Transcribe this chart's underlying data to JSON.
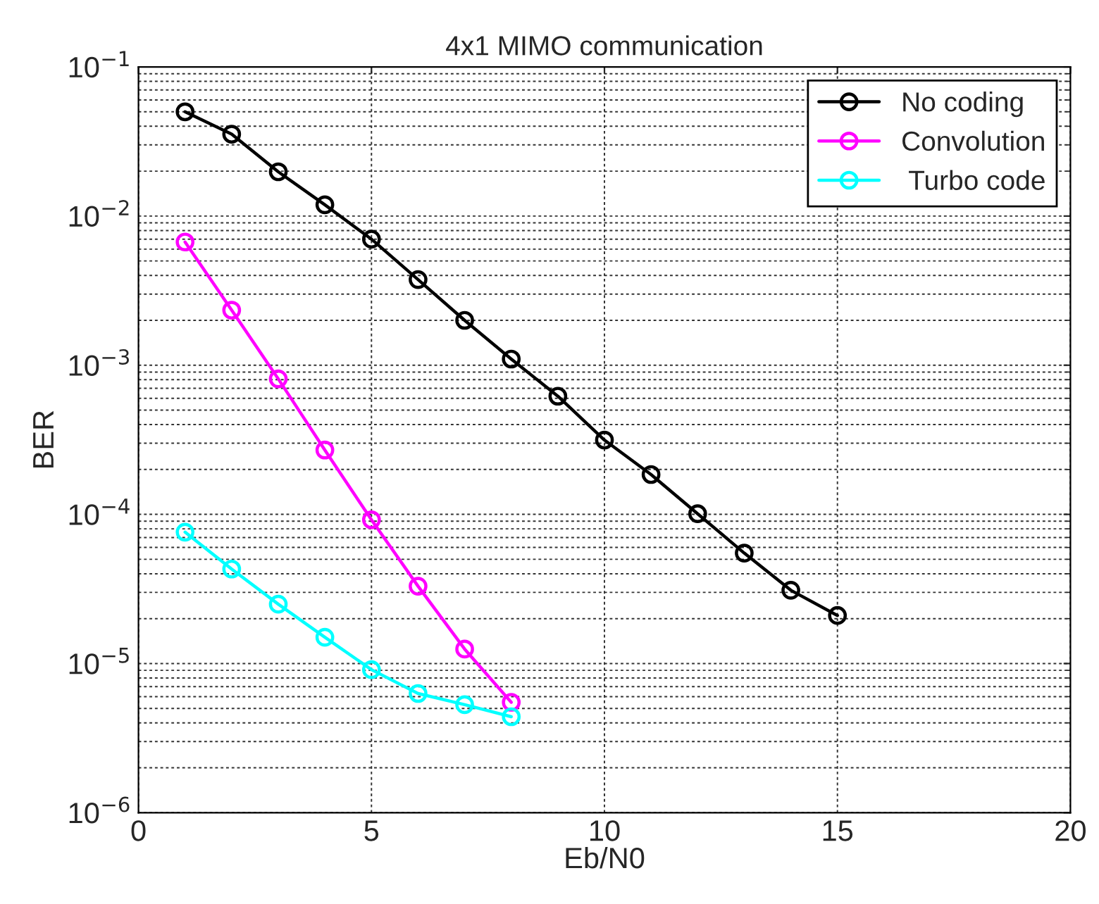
{
  "chart_data": {
    "type": "line",
    "title": "4x1 MIMO communication",
    "xlabel": "Eb/N0",
    "ylabel": "BER",
    "log": "y",
    "grid": true,
    "legend": "top right",
    "marker": "circle",
    "line_style": "solid",
    "xlim": [
      0,
      20
    ],
    "xticks": [
      0,
      5,
      10,
      15,
      20
    ],
    "ylim": [
      1e-06,
      0.1
    ],
    "yticks": [
      {
        "value": 1e-06,
        "label": "10$^{−6}$"
      },
      {
        "value": 1e-05,
        "label": "10$^{−5}$"
      },
      {
        "value": 0.0001,
        "label": "10$^{−4}$"
      },
      {
        "value": 0.001,
        "label": "10$^{−3}$"
      },
      {
        "value": 0.01,
        "label": "10$^{−2}$"
      },
      {
        "value": 0.1,
        "label": "10$^{−1}$"
      }
    ],
    "series": [
      {
        "name": "No coding",
        "color": "#000000",
        "x": [
          1,
          2,
          3,
          4,
          5,
          6,
          7,
          8,
          9,
          10,
          11,
          12,
          13,
          14,
          15
        ],
        "values": [
          0.05,
          0.0354,
          0.0198,
          0.0119,
          0.007,
          0.00375,
          0.002,
          0.0011,
          0.00062,
          0.000315,
          0.000185,
          0.000101,
          5.5e-05,
          3.1e-05,
          2.1e-05
        ]
      },
      {
        "name": "Convolution",
        "color": "#ff00ff",
        "x": [
          1,
          2,
          3,
          4,
          5,
          6,
          7,
          8
        ],
        "values": [
          0.0067,
          0.00234,
          0.00081,
          0.00027,
          9.2e-05,
          3.3e-05,
          1.25e-05,
          5.5e-06
        ]
      },
      {
        "name": " Turbo code",
        "color": "#00ffff",
        "x": [
          1,
          2,
          3,
          4,
          5,
          6,
          7,
          8
        ],
        "values": [
          7.6e-05,
          4.3e-05,
          2.5e-05,
          1.5e-05,
          9.1e-06,
          6.3e-06,
          5.3e-06,
          4.4e-06
        ]
      }
    ]
  }
}
